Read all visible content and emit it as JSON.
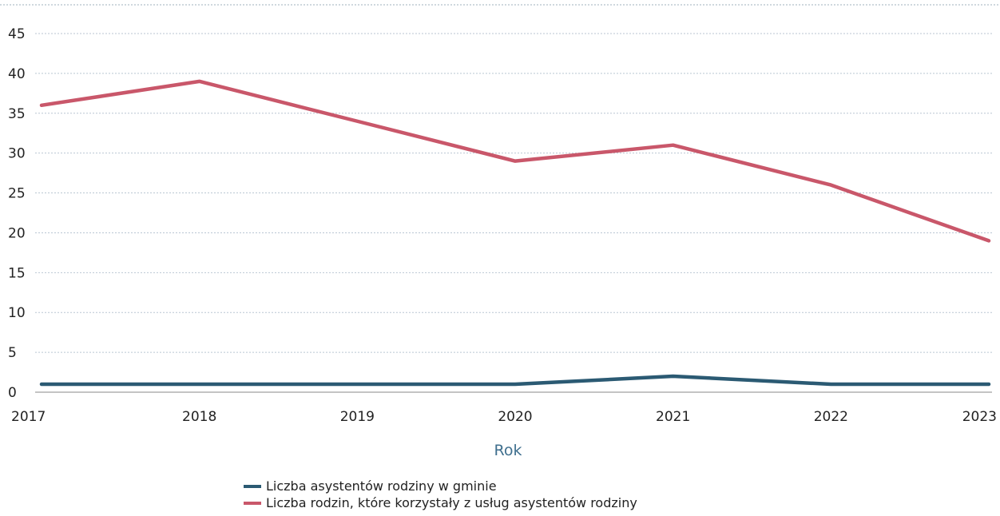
{
  "chart_data": {
    "type": "line",
    "xlabel": "Rok",
    "categories": [
      "2017",
      "2018",
      "2019",
      "2020",
      "2021",
      "2022",
      "2023"
    ],
    "y_ticks": [
      "0",
      "5",
      "10",
      "15",
      "20",
      "25",
      "30",
      "35",
      "40",
      "45"
    ],
    "ylim": [
      0,
      45
    ],
    "grid": true,
    "legend_position": "bottom",
    "series": [
      {
        "name": "Liczba asystentów rodziny w gminie",
        "color": "#2b5a73",
        "values": [
          1,
          1,
          1,
          1,
          2,
          1,
          1
        ]
      },
      {
        "name": "Liczba rodzin, które korzystały z usług asystentów rodziny",
        "color": "#c9576a",
        "values": [
          36,
          39,
          34,
          29,
          31,
          26,
          19
        ]
      }
    ]
  }
}
